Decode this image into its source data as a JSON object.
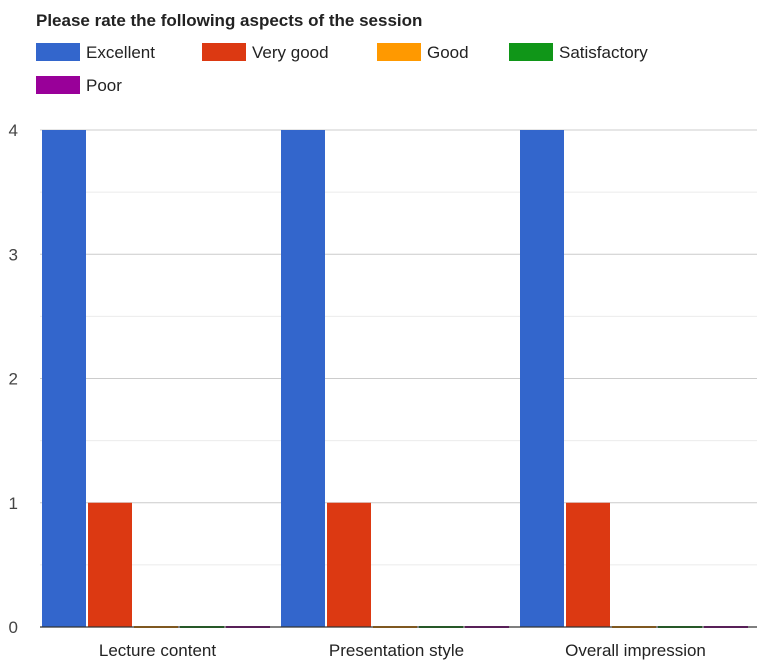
{
  "chart_data": {
    "type": "bar",
    "title": "Please rate the following aspects of the session",
    "categories": [
      "Lecture content",
      "Presentation style",
      "Overall impression"
    ],
    "series": [
      {
        "name": "Excellent",
        "color": "#3366cc",
        "values": [
          4,
          4,
          4
        ]
      },
      {
        "name": "Very good",
        "color": "#dc3912",
        "values": [
          1,
          1,
          1
        ]
      },
      {
        "name": "Good",
        "color": "#ff9900",
        "values": [
          0,
          0,
          0
        ]
      },
      {
        "name": "Satisfactory",
        "color": "#109618",
        "values": [
          0,
          0,
          0
        ]
      },
      {
        "name": "Poor",
        "color": "#990099",
        "values": [
          0,
          0,
          0
        ]
      }
    ],
    "ylim": [
      0,
      4
    ],
    "yticks": [
      "0",
      "1",
      "2",
      "3",
      "4"
    ],
    "xlabel": "",
    "ylabel": "",
    "grid": true,
    "legend_position": "top"
  }
}
